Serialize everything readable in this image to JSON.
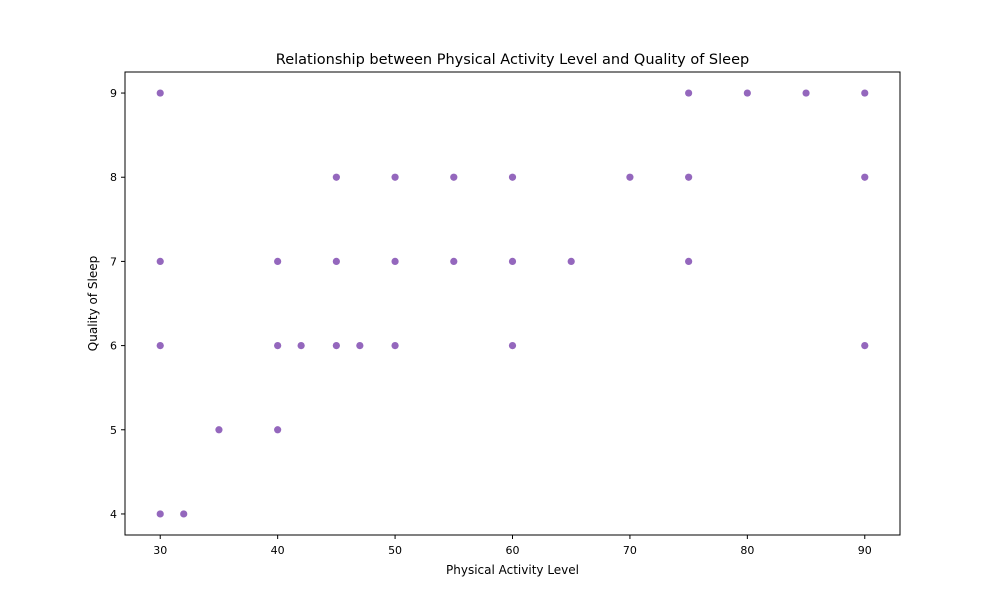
{
  "chart_data": {
    "type": "scatter",
    "title": "Relationship between Physical Activity Level and Quality of Sleep",
    "xlabel": "Physical Activity Level",
    "ylabel": "Quality of Sleep",
    "xlim": [
      27,
      93
    ],
    "ylim": [
      3.75,
      9.25
    ],
    "x_ticks": [
      30,
      40,
      50,
      60,
      70,
      80,
      90
    ],
    "y_ticks": [
      4,
      5,
      6,
      7,
      8,
      9
    ],
    "grid": false,
    "point_color": "#9467bd",
    "points": [
      {
        "x": 30,
        "y": 9
      },
      {
        "x": 75,
        "y": 9
      },
      {
        "x": 80,
        "y": 9
      },
      {
        "x": 85,
        "y": 9
      },
      {
        "x": 90,
        "y": 9
      },
      {
        "x": 45,
        "y": 8
      },
      {
        "x": 50,
        "y": 8
      },
      {
        "x": 55,
        "y": 8
      },
      {
        "x": 60,
        "y": 8
      },
      {
        "x": 70,
        "y": 8
      },
      {
        "x": 75,
        "y": 8
      },
      {
        "x": 90,
        "y": 8
      },
      {
        "x": 30,
        "y": 7
      },
      {
        "x": 40,
        "y": 7
      },
      {
        "x": 45,
        "y": 7
      },
      {
        "x": 50,
        "y": 7
      },
      {
        "x": 55,
        "y": 7
      },
      {
        "x": 60,
        "y": 7
      },
      {
        "x": 65,
        "y": 7
      },
      {
        "x": 75,
        "y": 7
      },
      {
        "x": 30,
        "y": 6
      },
      {
        "x": 40,
        "y": 6
      },
      {
        "x": 42,
        "y": 6
      },
      {
        "x": 45,
        "y": 6
      },
      {
        "x": 47,
        "y": 6
      },
      {
        "x": 50,
        "y": 6
      },
      {
        "x": 60,
        "y": 6
      },
      {
        "x": 90,
        "y": 6
      },
      {
        "x": 35,
        "y": 5
      },
      {
        "x": 40,
        "y": 5
      },
      {
        "x": 30,
        "y": 4
      },
      {
        "x": 32,
        "y": 4
      }
    ]
  }
}
